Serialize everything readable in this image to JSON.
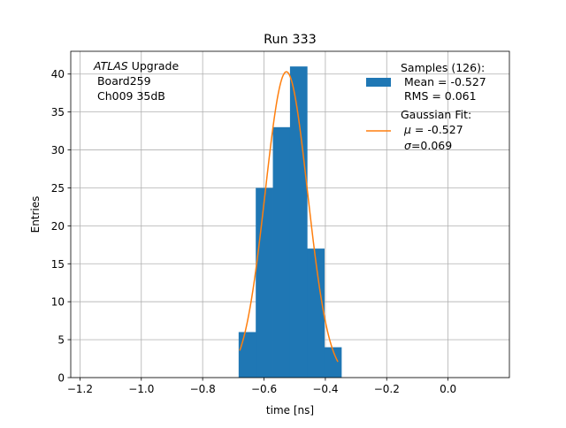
{
  "chart_data": {
    "type": "bar",
    "title": "Run 333",
    "xlabel": "time [ns]",
    "ylabel": "Entries",
    "xlim": [
      -1.23,
      0.2
    ],
    "ylim": [
      0,
      43
    ],
    "xticks": [
      -1.2,
      -1.0,
      -0.8,
      -0.6,
      -0.4,
      -0.2,
      0.0
    ],
    "xtick_labels": [
      "−1.2",
      "−1.0",
      "−0.8",
      "−0.6",
      "−0.4",
      "−0.2",
      "0.0"
    ],
    "yticks": [
      0,
      5,
      10,
      15,
      20,
      25,
      30,
      35,
      40
    ],
    "grid": true,
    "histogram": {
      "bin_edges": [
        -0.6827,
        -0.6269,
        -0.5711,
        -0.5153,
        -0.4595,
        -0.4037,
        -0.3479
      ],
      "counts": [
        6,
        25,
        33,
        41,
        17,
        4
      ],
      "color": "#1f77b4"
    },
    "fit": {
      "mu": -0.527,
      "sigma": 0.069,
      "amplitude": 40.3,
      "x_range": [
        -0.679,
        -0.359
      ],
      "color": "#ff7f0e"
    },
    "annotation": {
      "italic": "ATLAS",
      "line1_rest": " Upgrade",
      "line2": " Board259",
      "line3": " Ch009 35dB"
    },
    "legend": {
      "placement": "top-right",
      "hist_lines": [
        "Samples (126):",
        " Mean = -0.527",
        " RMS = 0.061"
      ],
      "fit_line1": "Gaussian Fit:",
      "fit_mu_symbol": "μ",
      "fit_mu_value": " = -0.527",
      "fit_sigma_symbol": "σ",
      "fit_sigma_value": "=0.069"
    }
  }
}
